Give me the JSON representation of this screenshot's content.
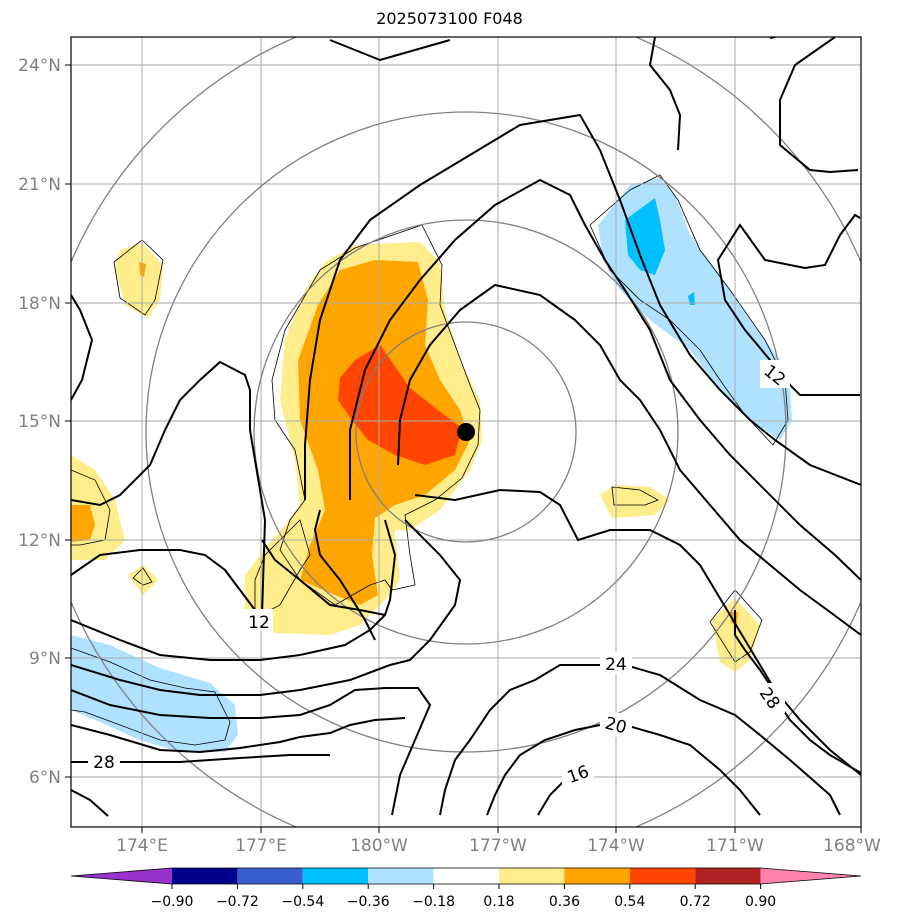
{
  "title": "2025073100 F048",
  "map": {
    "lon_ticks": [
      "174°E",
      "177°E",
      "180°W",
      "177°W",
      "174°W",
      "171°W",
      "168°W"
    ],
    "lat_ticks": [
      "24°N",
      "21°N",
      "18°N",
      "15°N",
      "12°N",
      "9°N",
      "6°N"
    ],
    "contour_labels": [
      "12",
      "12",
      "28",
      "24",
      "20",
      "16",
      "28"
    ],
    "center_marker": "storm-center-dot",
    "grid": true
  },
  "colorbar": {
    "tick_labels": [
      "−0.90",
      "−0.72",
      "−0.54",
      "−0.36",
      "−0.18",
      "0.18",
      "0.36",
      "0.54",
      "0.72",
      "0.90"
    ],
    "colors": [
      "#9932cc",
      "#00008b",
      "#3a5fcd",
      "#00bfff",
      "#b0e2ff",
      "#ffffff",
      "#ffec8b",
      "#ffa500",
      "#ff4500",
      "#b22222",
      "#ff82ab"
    ]
  }
}
